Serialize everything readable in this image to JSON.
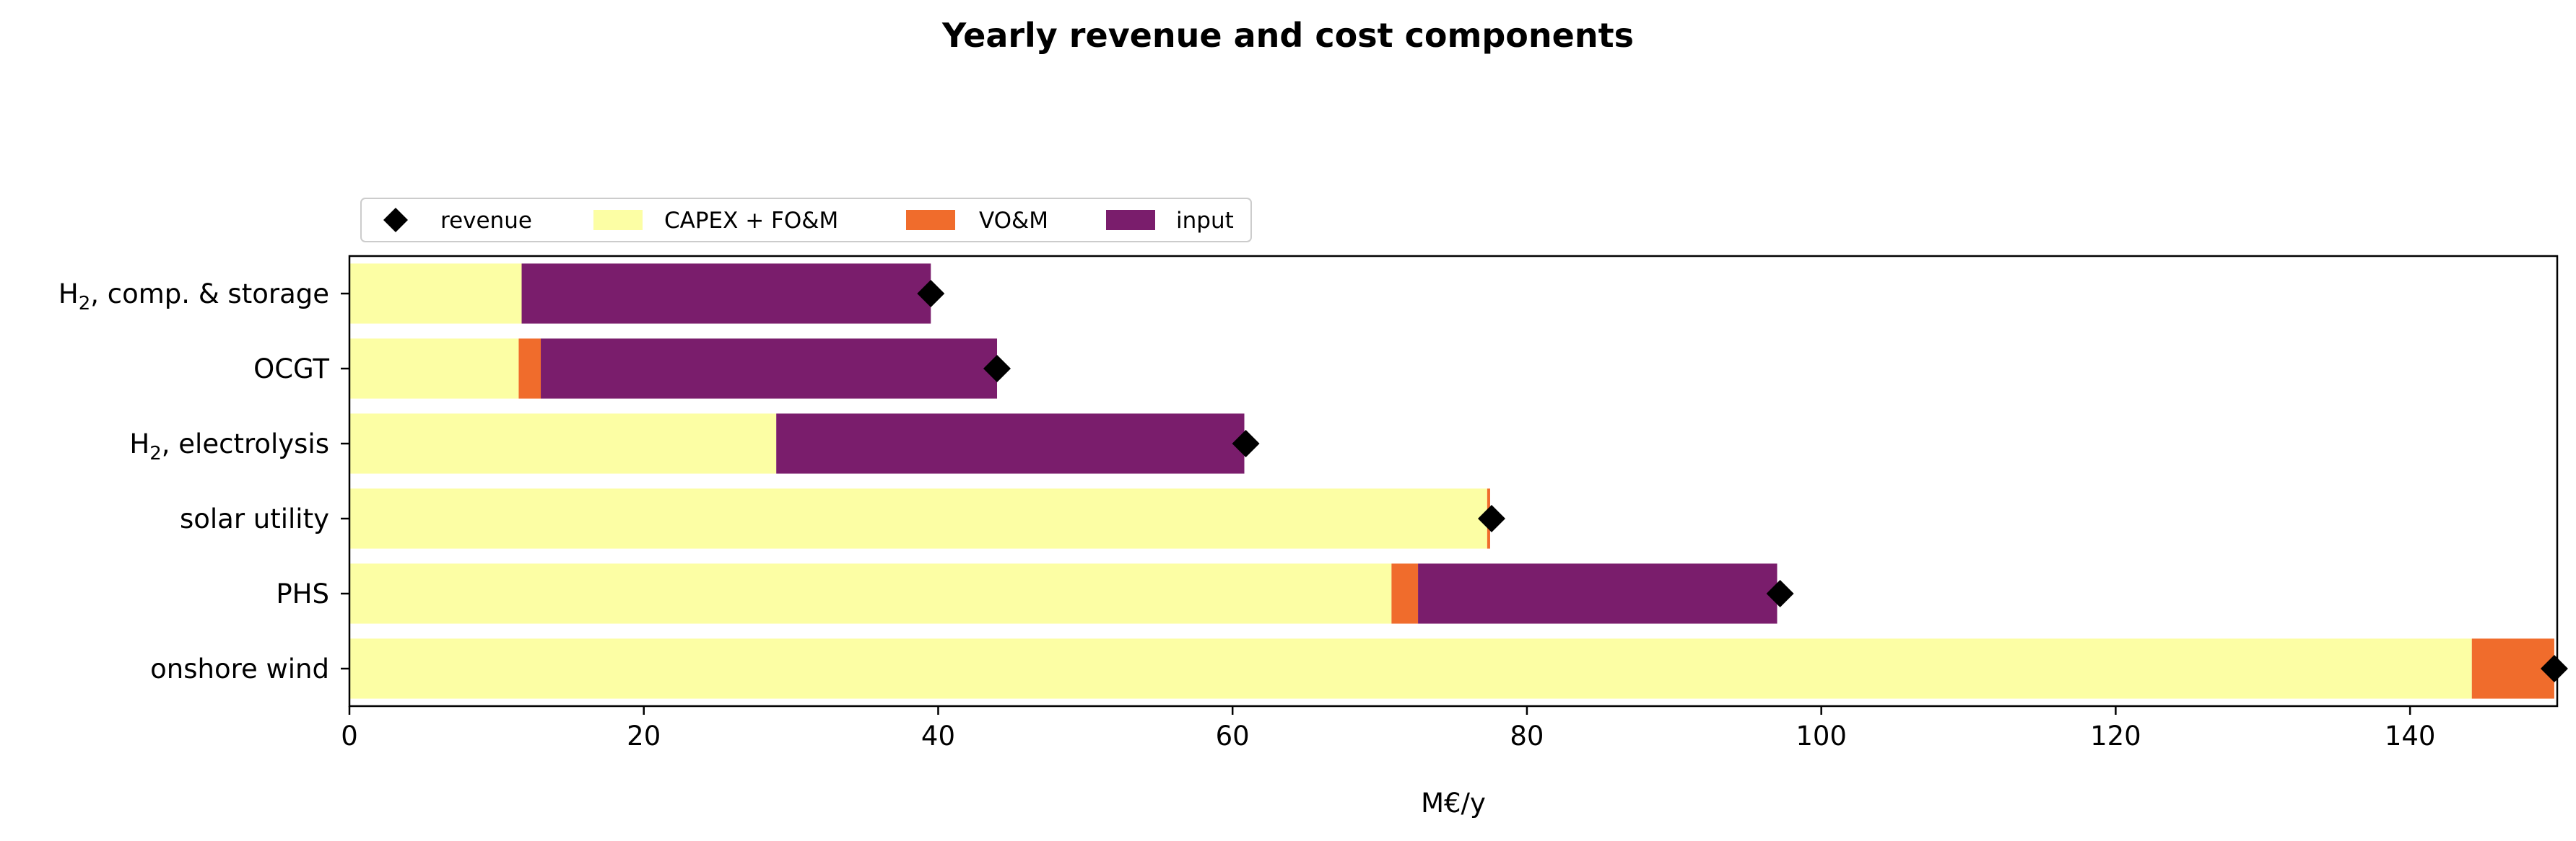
{
  "chart_data": {
    "type": "bar",
    "orientation": "horizontal",
    "stacked": true,
    "title": "Yearly revenue and cost components",
    "xlabel": "M€/y",
    "ylabel": "",
    "xlim": [
      0,
      150
    ],
    "xticks": [
      0,
      20,
      40,
      60,
      80,
      100,
      120,
      140
    ],
    "grid": false,
    "legend_position": "top-left, above plot",
    "categories": [
      {
        "label": "H",
        "sub": "2",
        "suffix": ", comp. & storage"
      },
      {
        "label": "OCGT",
        "sub": "",
        "suffix": ""
      },
      {
        "label": "H",
        "sub": "2",
        "suffix": ", electrolysis"
      },
      {
        "label": "solar utility",
        "sub": "",
        "suffix": ""
      },
      {
        "label": "PHS",
        "sub": "",
        "suffix": ""
      },
      {
        "label": "onshore wind",
        "sub": "",
        "suffix": ""
      }
    ],
    "series": [
      {
        "name": "CAPEX + FO&M",
        "color": "#fcfea4",
        "values": [
          11.7,
          11.5,
          29.0,
          77.3,
          70.8,
          144.2
        ]
      },
      {
        "name": "VO&M",
        "color": "#f06c2c",
        "values": [
          0,
          1.5,
          0,
          0.2,
          1.8,
          5.6
        ]
      },
      {
        "name": "input",
        "color": "#7a1d6c",
        "values": [
          27.8,
          31.0,
          31.8,
          0,
          24.4,
          0
        ]
      }
    ],
    "markers": {
      "name": "revenue",
      "color": "#000000",
      "shape": "diamond",
      "values": [
        39.5,
        44.0,
        60.9,
        77.6,
        97.2,
        149.8
      ]
    }
  }
}
